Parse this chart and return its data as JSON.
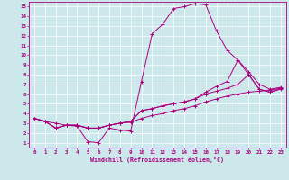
{
  "xlabel": "Windchill (Refroidissement éolien,°C)",
  "xlim": [
    -0.5,
    23.5
  ],
  "ylim": [
    0.5,
    15.5
  ],
  "xticks": [
    0,
    1,
    2,
    3,
    4,
    5,
    6,
    7,
    8,
    9,
    10,
    11,
    12,
    13,
    14,
    15,
    16,
    17,
    18,
    19,
    20,
    21,
    22,
    23
  ],
  "yticks": [
    1,
    2,
    3,
    4,
    5,
    6,
    7,
    8,
    9,
    10,
    11,
    12,
    13,
    14,
    15
  ],
  "bg_color": "#cce8ea",
  "line_color": "#aa007f",
  "grid_color": "#ffffff",
  "curves": [
    {
      "x": [
        0,
        1,
        2,
        3,
        4,
        5,
        6,
        7,
        8,
        9,
        10,
        11,
        12,
        13,
        14,
        15,
        16,
        17,
        18,
        19,
        20,
        21,
        22,
        23
      ],
      "y": [
        3.5,
        3.2,
        3.0,
        2.8,
        2.7,
        1.1,
        1.0,
        2.5,
        2.3,
        2.2,
        7.3,
        12.2,
        13.2,
        14.8,
        15.0,
        15.3,
        15.2,
        12.5,
        10.5,
        9.5,
        8.0,
        6.5,
        6.2,
        6.5
      ]
    },
    {
      "x": [
        0,
        1,
        2,
        3,
        4,
        5,
        6,
        7,
        8,
        9,
        10,
        11,
        12,
        13,
        14,
        15,
        16,
        17,
        18,
        19,
        20,
        21,
        22,
        23
      ],
      "y": [
        3.5,
        3.2,
        2.5,
        2.8,
        2.8,
        2.5,
        2.5,
        2.8,
        3.0,
        3.1,
        3.5,
        3.8,
        4.0,
        4.3,
        4.5,
        4.8,
        5.2,
        5.5,
        5.8,
        6.0,
        6.2,
        6.3,
        6.4,
        6.6
      ]
    },
    {
      "x": [
        0,
        1,
        2,
        3,
        4,
        5,
        6,
        7,
        8,
        9,
        10,
        11,
        12,
        13,
        14,
        15,
        16,
        17,
        18,
        19,
        20,
        21,
        22,
        23
      ],
      "y": [
        3.5,
        3.2,
        2.5,
        2.8,
        2.8,
        2.5,
        2.5,
        2.8,
        3.0,
        3.2,
        4.3,
        4.5,
        4.8,
        5.0,
        5.2,
        5.5,
        6.0,
        6.3,
        6.6,
        7.0,
        8.0,
        6.5,
        6.2,
        6.6
      ]
    },
    {
      "x": [
        0,
        1,
        2,
        3,
        4,
        5,
        6,
        7,
        8,
        9,
        10,
        11,
        12,
        13,
        14,
        15,
        16,
        17,
        18,
        19,
        20,
        21,
        22,
        23
      ],
      "y": [
        3.5,
        3.2,
        2.5,
        2.8,
        2.8,
        2.5,
        2.5,
        2.8,
        3.0,
        3.2,
        4.3,
        4.5,
        4.8,
        5.0,
        5.2,
        5.5,
        6.2,
        6.8,
        7.3,
        9.5,
        8.3,
        7.0,
        6.5,
        6.7
      ]
    }
  ]
}
